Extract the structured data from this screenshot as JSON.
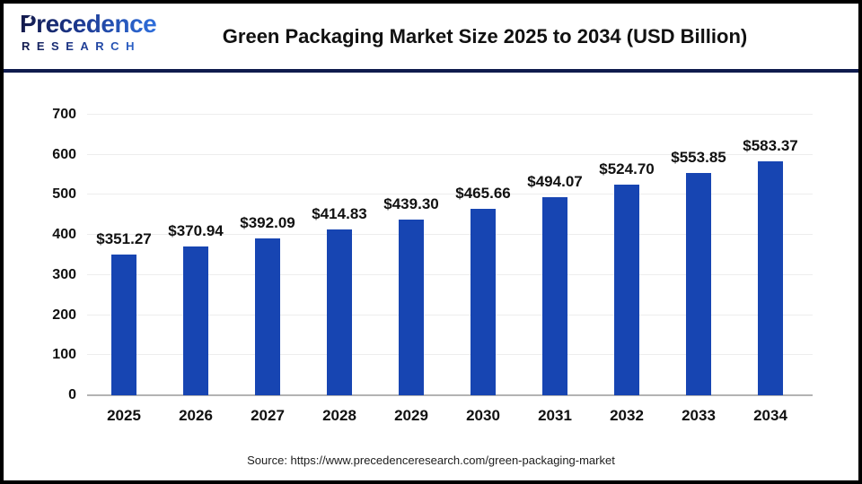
{
  "header": {
    "logo": {
      "line1": "Precedence",
      "line2": "RESEARCH"
    },
    "title": "Green Packaging Market Size 2025 to 2034 (USD Billion)"
  },
  "chart_data": {
    "type": "bar",
    "title": "Green Packaging Market Size 2025 to 2034 (USD Billion)",
    "categories": [
      "2025",
      "2026",
      "2027",
      "2028",
      "2029",
      "2030",
      "2031",
      "2032",
      "2033",
      "2034"
    ],
    "values": [
      351.27,
      370.94,
      392.09,
      414.83,
      439.3,
      465.66,
      494.07,
      524.7,
      553.85,
      583.37
    ],
    "value_labels": [
      "$351.27",
      "$370.94",
      "$392.09",
      "$414.83",
      "$439.30",
      "$465.66",
      "$494.07",
      "$524.70",
      "$553.85",
      "$583.37"
    ],
    "xlabel": "",
    "ylabel": "",
    "ylim": [
      0,
      700
    ],
    "yticks": [
      0,
      100,
      200,
      300,
      400,
      500,
      600,
      700
    ],
    "grid": true,
    "legend_position": "none",
    "bar_color": "#1745b2",
    "gridline_color": "#ededed",
    "baseline_color": "#b3b3b3"
  },
  "footer": {
    "source": "Source: https://www.precedenceresearch.com/green-packaging-market"
  }
}
